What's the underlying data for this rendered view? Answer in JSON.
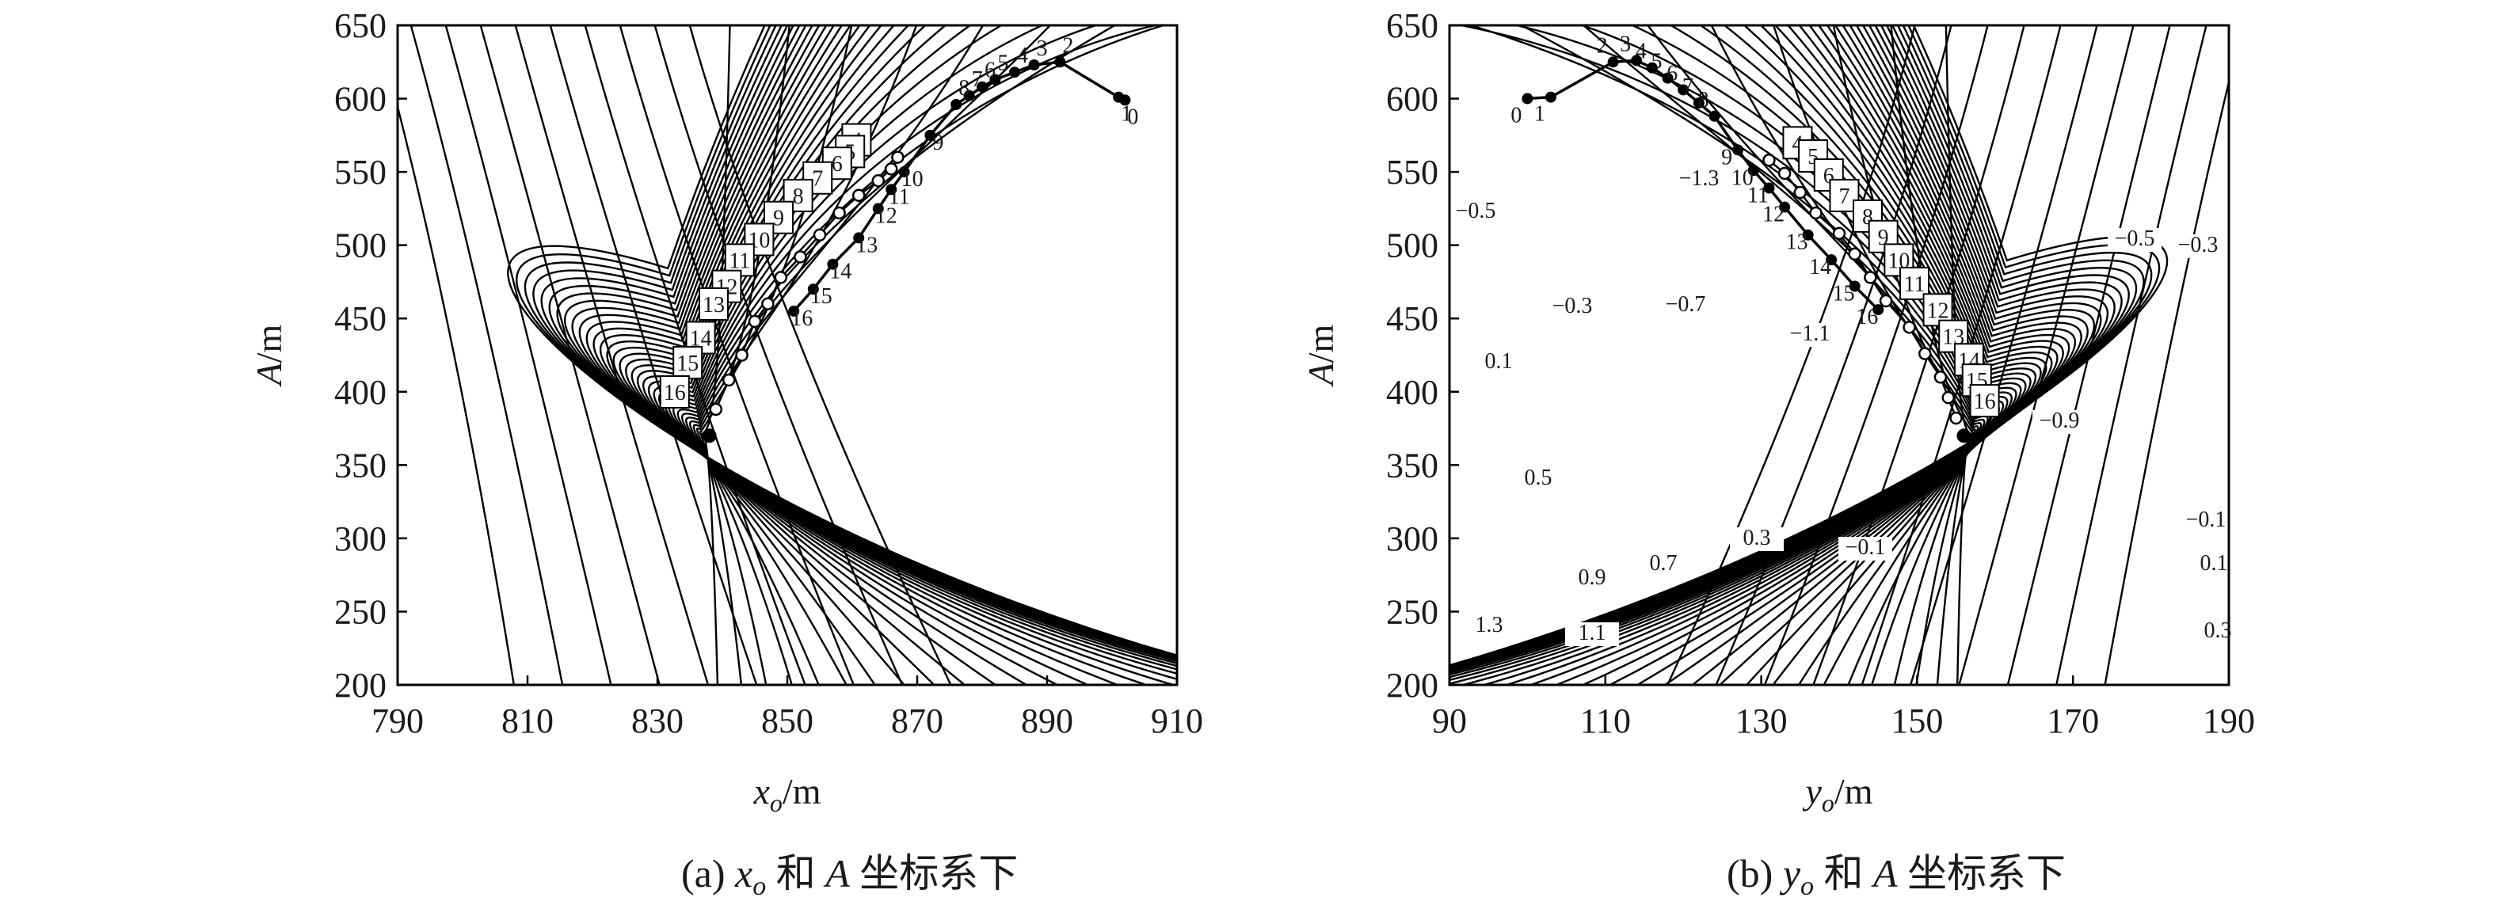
{
  "chart_data": [
    {
      "type": "contour",
      "caption": {
        "prefix": "(a) ",
        "var": "x",
        "sub": "o",
        "suffix": " 和 ",
        "var2": "A",
        "tail": " 坐标系下"
      },
      "xlabel": {
        "var": "x",
        "sub": "o",
        "unit": "/m"
      },
      "ylabel": {
        "var": "A",
        "unit": "/m"
      },
      "xlim": [
        790,
        910
      ],
      "ylim": [
        200,
        650
      ],
      "xticks": [
        790,
        810,
        830,
        850,
        870,
        890,
        910
      ],
      "yticks": [
        200,
        250,
        300,
        350,
        400,
        450,
        500,
        550,
        600,
        650
      ],
      "min_point": [
        838,
        370
      ],
      "contour_labels": [],
      "path_filled": [
        {
          "label": "0",
          "x": 902,
          "y": 599
        },
        {
          "label": "1",
          "x": 901,
          "y": 601
        },
        {
          "label": "2",
          "x": 892,
          "y": 625
        },
        {
          "label": "3",
          "x": 888,
          "y": 623
        },
        {
          "label": "4",
          "x": 885,
          "y": 618
        },
        {
          "label": "5",
          "x": 882,
          "y": 613
        },
        {
          "label": "6",
          "x": 880,
          "y": 608
        },
        {
          "label": "7",
          "x": 878,
          "y": 602
        },
        {
          "label": "8",
          "x": 876,
          "y": 596
        },
        {
          "label": "9",
          "x": 872,
          "y": 575
        },
        {
          "label": "10",
          "x": 868,
          "y": 550
        },
        {
          "label": "11",
          "x": 866,
          "y": 538
        },
        {
          "label": "12",
          "x": 864,
          "y": 525
        },
        {
          "label": "13",
          "x": 861,
          "y": 505
        },
        {
          "label": "14",
          "x": 857,
          "y": 487
        },
        {
          "label": "15",
          "x": 854,
          "y": 470
        },
        {
          "label": "16",
          "x": 851,
          "y": 455
        }
      ],
      "path_open": [
        {
          "label": "4",
          "x": 867,
          "y": 560
        },
        {
          "label": "5",
          "x": 866,
          "y": 552
        },
        {
          "label": "6",
          "x": 864,
          "y": 544
        },
        {
          "label": "7",
          "x": 861,
          "y": 534
        },
        {
          "label": "8",
          "x": 858,
          "y": 522
        },
        {
          "label": "9",
          "x": 855,
          "y": 507
        },
        {
          "label": "10",
          "x": 852,
          "y": 492
        },
        {
          "label": "11",
          "x": 849,
          "y": 478
        },
        {
          "label": "12",
          "x": 847,
          "y": 460
        },
        {
          "label": "13",
          "x": 845,
          "y": 448
        },
        {
          "label": "14",
          "x": 843,
          "y": 425
        },
        {
          "label": "15",
          "x": 841,
          "y": 408
        },
        {
          "label": "16",
          "x": 839,
          "y": 388
        }
      ]
    },
    {
      "type": "contour",
      "caption": {
        "prefix": "(b) ",
        "var": "y",
        "sub": "o",
        "suffix": " 和 ",
        "var2": "A",
        "tail": " 坐标系下"
      },
      "xlabel": {
        "var": "y",
        "sub": "o",
        "unit": "/m"
      },
      "ylabel": {
        "var": "A",
        "unit": "/m"
      },
      "xlim": [
        90,
        190
      ],
      "ylim": [
        200,
        650
      ],
      "xticks": [
        90,
        110,
        130,
        150,
        170,
        190
      ],
      "yticks": [
        200,
        250,
        300,
        350,
        400,
        450,
        500,
        550,
        600,
        650
      ],
      "min_point": [
        156,
        370
      ],
      "contour_labels": [
        "−1.3",
        "−0.5",
        "−0.3",
        "−0.7",
        "−1.1",
        "0.1",
        "0.5",
        "0.3",
        "−0.1",
        "0.9",
        "0.7",
        "1.3",
        "1.1",
        "−0.5",
        "−0.3",
        "−0.9",
        "−0.1",
        "0.1",
        "0.3"
      ],
      "path_filled": [
        {
          "label": "0",
          "x": 100,
          "y": 600
        },
        {
          "label": "1",
          "x": 103,
          "y": 601
        },
        {
          "label": "2",
          "x": 111,
          "y": 625
        },
        {
          "label": "3",
          "x": 114,
          "y": 626
        },
        {
          "label": "4",
          "x": 116,
          "y": 621
        },
        {
          "label": "5",
          "x": 118,
          "y": 614
        },
        {
          "label": "6",
          "x": 120,
          "y": 606
        },
        {
          "label": "7",
          "x": 122,
          "y": 597
        },
        {
          "label": "8",
          "x": 124,
          "y": 588
        },
        {
          "label": "9",
          "x": 127,
          "y": 565
        },
        {
          "label": "10",
          "x": 129,
          "y": 551
        },
        {
          "label": "11",
          "x": 131,
          "y": 539
        },
        {
          "label": "12",
          "x": 133,
          "y": 526
        },
        {
          "label": "13",
          "x": 136,
          "y": 507
        },
        {
          "label": "14",
          "x": 139,
          "y": 490
        },
        {
          "label": "15",
          "x": 142,
          "y": 472
        },
        {
          "label": "16",
          "x": 145,
          "y": 456
        }
      ],
      "path_open": [
        {
          "label": "4",
          "x": 131,
          "y": 558
        },
        {
          "label": "5",
          "x": 133,
          "y": 549
        },
        {
          "label": "6",
          "x": 135,
          "y": 536
        },
        {
          "label": "7",
          "x": 137,
          "y": 522
        },
        {
          "label": "8",
          "x": 140,
          "y": 508
        },
        {
          "label": "9",
          "x": 142,
          "y": 494
        },
        {
          "label": "10",
          "x": 144,
          "y": 478
        },
        {
          "label": "11",
          "x": 146,
          "y": 462
        },
        {
          "label": "12",
          "x": 149,
          "y": 444
        },
        {
          "label": "13",
          "x": 151,
          "y": 426
        },
        {
          "label": "14",
          "x": 153,
          "y": 410
        },
        {
          "label": "15",
          "x": 154,
          "y": 396
        },
        {
          "label": "16",
          "x": 155,
          "y": 382
        }
      ]
    }
  ]
}
